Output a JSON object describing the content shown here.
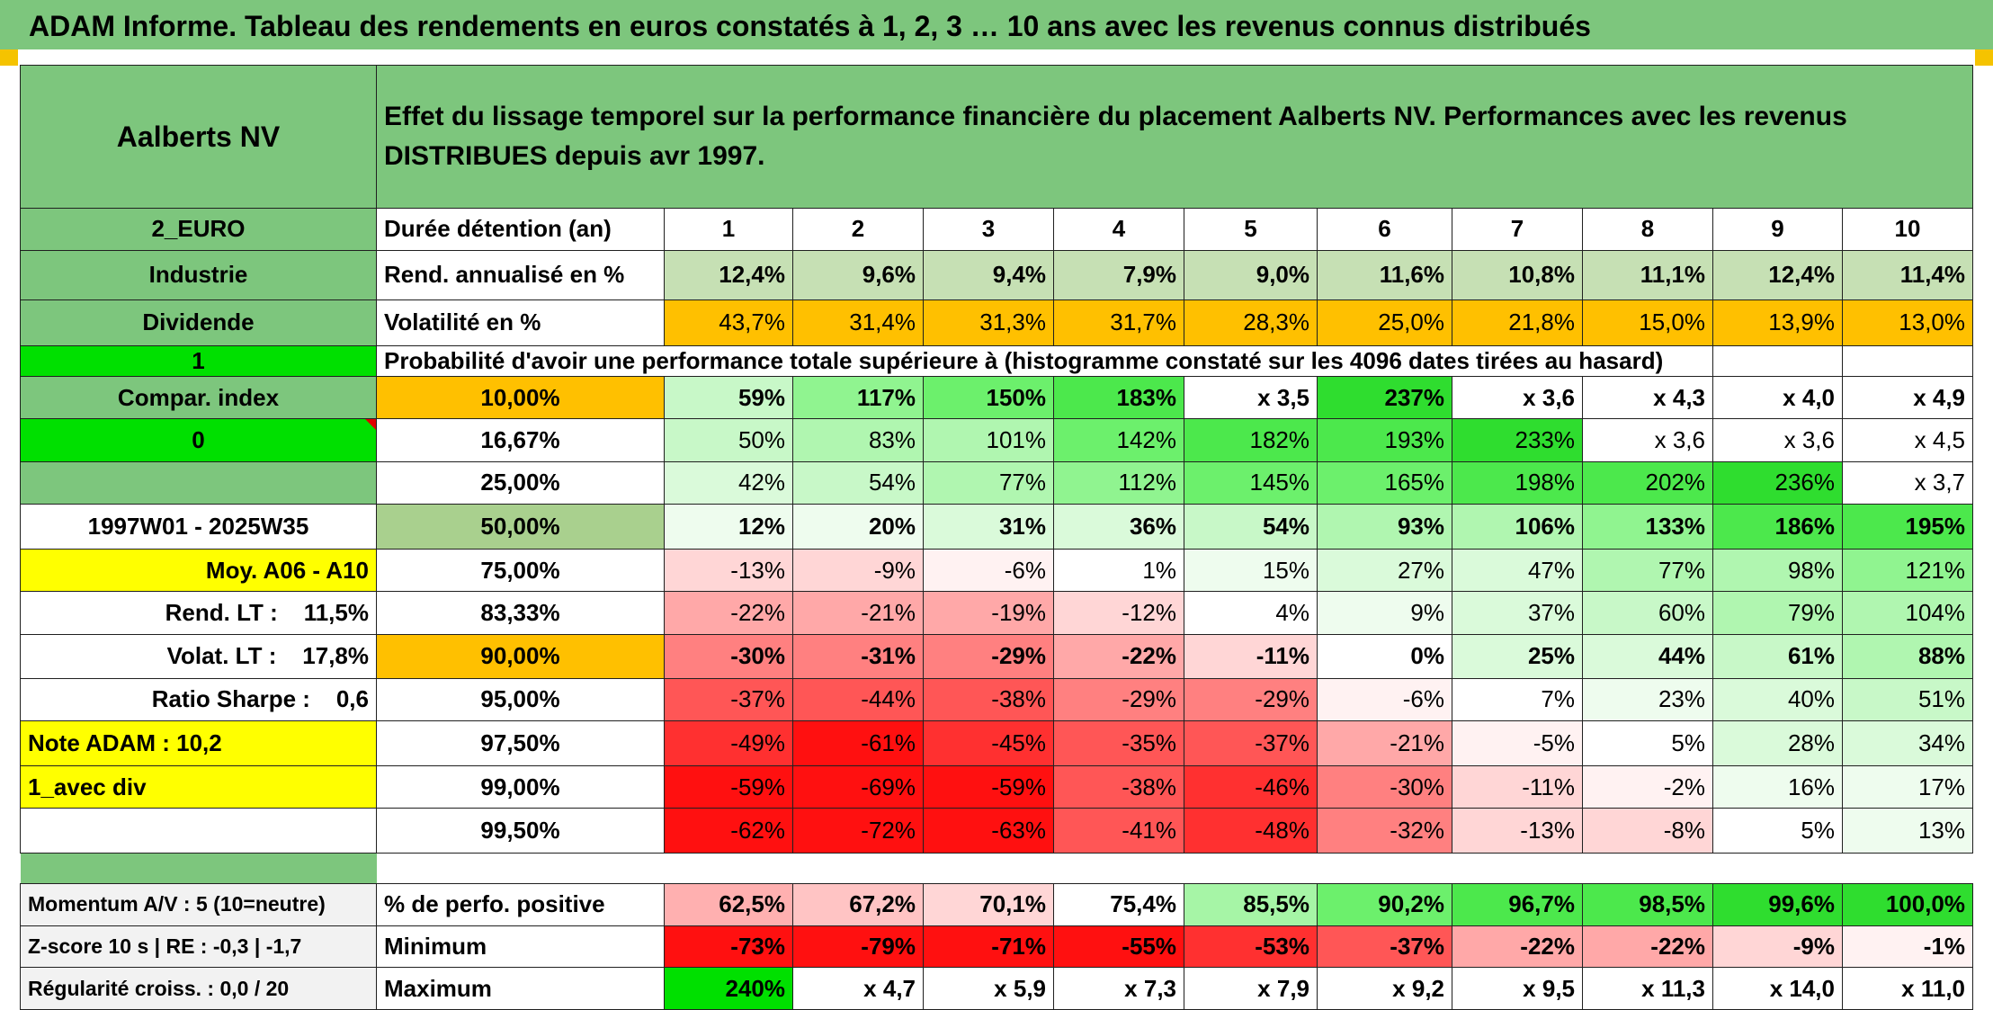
{
  "title": "ADAM Informe. Tableau des rendements en euros constatés à 1, 2, 3 … 10 ans avec les revenus connus distribués",
  "header": {
    "company": "Aalberts NV",
    "description": "Effet du lissage temporel sur la performance financière du placement Aalberts NV. Performances avec les revenus DISTRIBUES depuis avr 1997."
  },
  "left_labels": {
    "index": "2_EURO",
    "sector": "Industrie",
    "dividend": "Dividende",
    "dividend_flag": "1",
    "compar_index": "Compar. index",
    "compar_flag": "0",
    "period": "1997W01 - 2025W35",
    "moy": "Moy. A06 - A10",
    "rend_lt": "Rend. LT :    11,5%",
    "volat_lt": "Volat. LT :    17,8%",
    "sharpe": "Ratio Sharpe :    0,6",
    "note": "Note ADAM : 10,2",
    "div_mode": "1_avec div",
    "momentum": "Momentum A/V : 5 (10=neutre)",
    "zscore": "Z-score 10 s | RE : -0,3 | -1,7",
    "regularite": "Régularité croiss. : 0,0 / 20"
  },
  "metrics": {
    "duration_label": "Durée détention (an)",
    "years": [
      "1",
      "2",
      "3",
      "4",
      "5",
      "6",
      "7",
      "8",
      "9",
      "10"
    ],
    "rend_label": "Rend. annualisé en %",
    "rend": [
      "12,4%",
      "9,6%",
      "9,4%",
      "7,9%",
      "9,0%",
      "11,6%",
      "10,8%",
      "11,1%",
      "12,4%",
      "11,4%"
    ],
    "vol_label": "Volatilité en %",
    "vol": [
      "43,7%",
      "31,4%",
      "31,3%",
      "31,7%",
      "28,3%",
      "25,0%",
      "21,8%",
      "15,0%",
      "13,9%",
      "13,0%"
    ],
    "prob_title": "Probabilité d'avoir une performance totale supérieure à (histogramme constaté sur les 4096 dates tirées au hasard)"
  },
  "prob_rows": [
    {
      "pct": "10,00%",
      "vals": [
        "59%",
        "117%",
        "150%",
        "183%",
        "x 3,5",
        "237%",
        "x 3,6",
        "x 4,3",
        "x 4,0",
        "x 4,9"
      ]
    },
    {
      "pct": "16,67%",
      "vals": [
        "50%",
        "83%",
        "101%",
        "142%",
        "182%",
        "193%",
        "233%",
        "x 3,6",
        "x 3,6",
        "x 4,5"
      ]
    },
    {
      "pct": "25,00%",
      "vals": [
        "42%",
        "54%",
        "77%",
        "112%",
        "145%",
        "165%",
        "198%",
        "202%",
        "236%",
        "x 3,7"
      ]
    },
    {
      "pct": "50,00%",
      "vals": [
        "12%",
        "20%",
        "31%",
        "36%",
        "54%",
        "93%",
        "106%",
        "133%",
        "186%",
        "195%"
      ]
    },
    {
      "pct": "75,00%",
      "vals": [
        "-13%",
        "-9%",
        "-6%",
        "1%",
        "15%",
        "27%",
        "47%",
        "77%",
        "98%",
        "121%"
      ]
    },
    {
      "pct": "83,33%",
      "vals": [
        "-22%",
        "-21%",
        "-19%",
        "-12%",
        "4%",
        "9%",
        "37%",
        "60%",
        "79%",
        "104%"
      ]
    },
    {
      "pct": "90,00%",
      "vals": [
        "-30%",
        "-31%",
        "-29%",
        "-22%",
        "-11%",
        "0%",
        "25%",
        "44%",
        "61%",
        "88%"
      ]
    },
    {
      "pct": "95,00%",
      "vals": [
        "-37%",
        "-44%",
        "-38%",
        "-29%",
        "-29%",
        "-6%",
        "7%",
        "23%",
        "40%",
        "51%"
      ]
    },
    {
      "pct": "97,50%",
      "vals": [
        "-49%",
        "-61%",
        "-45%",
        "-35%",
        "-37%",
        "-21%",
        "-5%",
        "5%",
        "28%",
        "34%"
      ]
    },
    {
      "pct": "99,00%",
      "vals": [
        "-59%",
        "-69%",
        "-59%",
        "-38%",
        "-46%",
        "-30%",
        "-11%",
        "-2%",
        "16%",
        "17%"
      ]
    },
    {
      "pct": "99,50%",
      "vals": [
        "-62%",
        "-72%",
        "-63%",
        "-41%",
        "-48%",
        "-32%",
        "-13%",
        "-8%",
        "5%",
        "13%"
      ]
    }
  ],
  "summary": {
    "positive_label": "% de perfo. positive",
    "positive": [
      "62,5%",
      "67,2%",
      "70,1%",
      "75,4%",
      "85,5%",
      "90,2%",
      "96,7%",
      "98,5%",
      "99,6%",
      "100,0%"
    ],
    "min_label": "Minimum",
    "min": [
      "-73%",
      "-79%",
      "-71%",
      "-55%",
      "-53%",
      "-37%",
      "-22%",
      "-22%",
      "-9%",
      "-1%"
    ],
    "max_label": "Maximum",
    "max": [
      "240%",
      "x 4,7",
      "x 5,9",
      "x 7,3",
      "x 7,9",
      "x 9,2",
      "x 9,5",
      "x 11,3",
      "x 14,0",
      "x 11,0"
    ]
  },
  "colors": {
    "header_green": "#7dc67d",
    "light_green": "#c6e0b4",
    "bright_green": "#00e000",
    "orange": "#ffc000",
    "yellow": "#ffff00",
    "red_text": "#d00000"
  }
}
